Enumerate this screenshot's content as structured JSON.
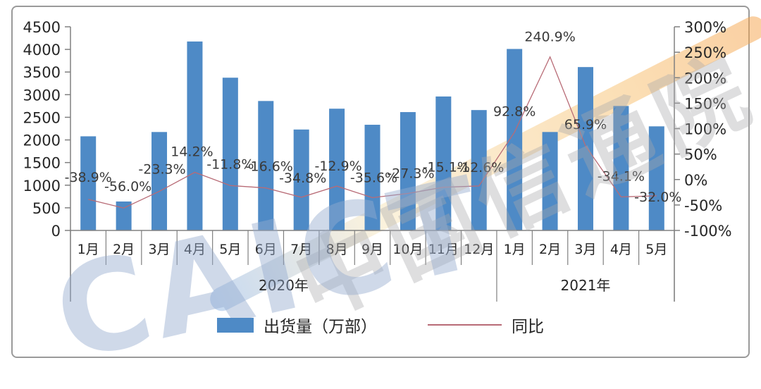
{
  "watermark": {
    "org_cn": "中国信通院",
    "org_en": "CAICT"
  },
  "legend": {
    "bar_label": "出货量（万部）",
    "line_label": "同比"
  },
  "chart_data": {
    "type": "bar",
    "subtype": "bar+line combo, dual axis",
    "title": "",
    "xlabel": "",
    "ylabel_left": "出货量（万部）",
    "ylabel_right": "同比",
    "grid": false,
    "legend_position": "bottom",
    "categories": [
      "1月",
      "2月",
      "3月",
      "4月",
      "5月",
      "6月",
      "7月",
      "8月",
      "9月",
      "10月",
      "11月",
      "12月",
      "1月",
      "2月",
      "3月",
      "4月",
      "5月"
    ],
    "year_groups": [
      {
        "label": "2020年",
        "count": 12
      },
      {
        "label": "2021年",
        "count": 5
      }
    ],
    "left_axis": {
      "min": 0,
      "max": 4500,
      "step": 500,
      "labels": [
        "4500",
        "4000",
        "3500",
        "3000",
        "2500",
        "2000",
        "1500",
        "1000",
        "500",
        "0"
      ]
    },
    "right_axis": {
      "min": -100,
      "max": 300,
      "step": 50,
      "labels": [
        "300%",
        "250%",
        "200%",
        "150%",
        "100%",
        "50%",
        "0%",
        "-50%",
        "-100%"
      ]
    },
    "series": [
      {
        "name": "出货量（万部）",
        "type": "bar",
        "axis": "left",
        "color": "#4e8ac6",
        "values": [
          2080,
          640,
          2175,
          4175,
          3375,
          2860,
          2230,
          2690,
          2335,
          2615,
          2960,
          2660,
          4010,
          2175,
          3610,
          2750,
          2300
        ]
      },
      {
        "name": "同比",
        "type": "line",
        "axis": "right",
        "color": "#b86b76",
        "values": [
          -38.9,
          -56.0,
          -23.3,
          14.2,
          -11.8,
          -16.6,
          -34.8,
          -12.9,
          -35.6,
          -27.3,
          -15.1,
          -12.6,
          92.8,
          240.9,
          65.9,
          -34.1,
          -32.0
        ],
        "point_labels": [
          "-38.9%",
          "-56.0%",
          "-23.3%",
          "14.2%",
          "-11.8%",
          "-16.6%",
          "-34.8%",
          "-12.9%",
          "-35.6%",
          "-27.3%",
          "-15.1%",
          "-12.6%",
          "92.8%",
          "240.9%",
          "65.9%",
          "-34.1%",
          "-32.0%"
        ]
      }
    ]
  }
}
